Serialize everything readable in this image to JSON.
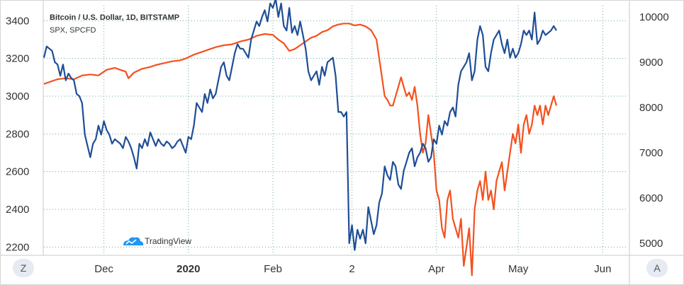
{
  "chart_data": {
    "type": "line",
    "legend": [
      {
        "name": "Bitcoin / U.S. Dollar, 1D, BITSTAMP",
        "bold": true
      },
      {
        "name": "SPX, SPCFD",
        "bold": false
      }
    ],
    "left_axis": {
      "ticks": [
        2200,
        2400,
        2600,
        2800,
        3000,
        3200,
        3400
      ],
      "range": [
        2160,
        3480
      ]
    },
    "right_axis": {
      "ticks": [
        5000,
        6000,
        7000,
        8000,
        9000,
        10000
      ],
      "range": [
        4750,
        10250
      ]
    },
    "x_axis": {
      "ticks": [
        {
          "label": "Dec",
          "x": 22,
          "bold": false
        },
        {
          "label": "2020",
          "x": 53,
          "bold": true
        },
        {
          "label": "Feb",
          "x": 84,
          "bold": false
        },
        {
          "label": "2",
          "x": 113,
          "bold": false
        },
        {
          "label": "Apr",
          "x": 144,
          "bold": false
        },
        {
          "label": "May",
          "x": 174,
          "bold": false
        },
        {
          "label": "Jun",
          "x": 205,
          "bold": false
        }
      ],
      "range": [
        0,
        214
      ]
    },
    "grid": true,
    "colors": {
      "bitcoin": "#1f4e96",
      "spx": "#f4511e",
      "grid": "#6aa8a0",
      "axis": "#c9c9c9"
    },
    "series": [
      {
        "name": "Bitcoin / U.S. Dollar, 1D, BITSTAMP",
        "axis": "right",
        "color": "#1f4e96",
        "points": [
          [
            0,
            9100
          ],
          [
            1,
            9350
          ],
          [
            2,
            9300
          ],
          [
            3,
            9250
          ],
          [
            4,
            9000
          ],
          [
            5,
            8950
          ],
          [
            6,
            8700
          ],
          [
            7,
            8950
          ],
          [
            8,
            8600
          ],
          [
            9,
            8750
          ],
          [
            10,
            8650
          ],
          [
            11,
            8600
          ],
          [
            12,
            8300
          ],
          [
            13,
            8250
          ],
          [
            14,
            8100
          ],
          [
            15,
            7400
          ],
          [
            16,
            7150
          ],
          [
            17,
            6900
          ],
          [
            18,
            7200
          ],
          [
            19,
            7300
          ],
          [
            20,
            7600
          ],
          [
            21,
            7400
          ],
          [
            22,
            7700
          ],
          [
            23,
            7500
          ],
          [
            24,
            7400
          ],
          [
            25,
            7200
          ],
          [
            26,
            7300
          ],
          [
            27,
            7250
          ],
          [
            28,
            7200
          ],
          [
            29,
            7100
          ],
          [
            30,
            7350
          ],
          [
            31,
            7250
          ],
          [
            32,
            7100
          ],
          [
            33,
            6900
          ],
          [
            34,
            6650
          ],
          [
            35,
            7200
          ],
          [
            36,
            7100
          ],
          [
            37,
            7300
          ],
          [
            38,
            7150
          ],
          [
            39,
            7450
          ],
          [
            40,
            7300
          ],
          [
            41,
            7150
          ],
          [
            42,
            7300
          ],
          [
            43,
            7200
          ],
          [
            44,
            7150
          ],
          [
            45,
            7250
          ],
          [
            46,
            7200
          ],
          [
            47,
            7100
          ],
          [
            48,
            7150
          ],
          [
            49,
            7250
          ],
          [
            50,
            7300
          ],
          [
            51,
            7150
          ],
          [
            52,
            7000
          ],
          [
            53,
            7350
          ],
          [
            54,
            7300
          ],
          [
            55,
            7600
          ],
          [
            56,
            8100
          ],
          [
            57,
            8000
          ],
          [
            58,
            7900
          ],
          [
            59,
            8300
          ],
          [
            60,
            8100
          ],
          [
            61,
            8400
          ],
          [
            62,
            8200
          ],
          [
            63,
            8300
          ],
          [
            64,
            8600
          ],
          [
            65,
            8900
          ],
          [
            66,
            9000
          ],
          [
            67,
            8700
          ],
          [
            68,
            8600
          ],
          [
            69,
            8900
          ],
          [
            70,
            9200
          ],
          [
            71,
            9400
          ],
          [
            72,
            9300
          ],
          [
            73,
            9300
          ],
          [
            74,
            9200
          ],
          [
            75,
            9100
          ],
          [
            76,
            9500
          ],
          [
            77,
            9700
          ],
          [
            78,
            9900
          ],
          [
            79,
            9800
          ],
          [
            80,
            10000
          ],
          [
            81,
            10150
          ],
          [
            82,
            9900
          ],
          [
            83,
            10300
          ],
          [
            84,
            10200
          ],
          [
            85,
            10400
          ],
          [
            86,
            10000
          ],
          [
            87,
            10300
          ],
          [
            88,
            9800
          ],
          [
            89,
            9700
          ],
          [
            90,
            10200
          ],
          [
            91,
            9650
          ],
          [
            92,
            9800
          ],
          [
            93,
            9600
          ],
          [
            94,
            9900
          ],
          [
            95,
            9600
          ],
          [
            96,
            9300
          ],
          [
            97,
            8800
          ],
          [
            98,
            8600
          ],
          [
            99,
            8700
          ],
          [
            100,
            8800
          ],
          [
            101,
            8500
          ],
          [
            102,
            8900
          ],
          [
            103,
            8700
          ],
          [
            104,
            9000
          ],
          [
            105,
            9050
          ],
          [
            106,
            9100
          ],
          [
            107,
            8700
          ],
          [
            108,
            7900
          ],
          [
            109,
            7900
          ],
          [
            110,
            7800
          ],
          [
            111,
            7900
          ],
          [
            112,
            5000
          ],
          [
            113,
            5400
          ],
          [
            114,
            4850
          ],
          [
            115,
            5300
          ],
          [
            116,
            5100
          ],
          [
            117,
            5300
          ],
          [
            118,
            5000
          ],
          [
            119,
            5800
          ],
          [
            120,
            5500
          ],
          [
            121,
            5200
          ],
          [
            122,
            5400
          ],
          [
            123,
            5900
          ],
          [
            124,
            6100
          ],
          [
            125,
            6700
          ],
          [
            126,
            6500
          ],
          [
            127,
            6400
          ],
          [
            128,
            6800
          ],
          [
            129,
            6700
          ],
          [
            130,
            6300
          ],
          [
            131,
            6200
          ],
          [
            132,
            6600
          ],
          [
            133,
            6800
          ],
          [
            134,
            7000
          ],
          [
            135,
            7100
          ],
          [
            136,
            6700
          ],
          [
            137,
            6900
          ],
          [
            138,
            7000
          ],
          [
            139,
            7200
          ],
          [
            140,
            7100
          ],
          [
            141,
            6800
          ],
          [
            142,
            6900
          ],
          [
            143,
            7300
          ],
          [
            144,
            7200
          ],
          [
            145,
            7600
          ],
          [
            146,
            7400
          ],
          [
            147,
            7700
          ],
          [
            148,
            7600
          ],
          [
            149,
            7900
          ],
          [
            150,
            8000
          ],
          [
            151,
            7800
          ],
          [
            152,
            8500
          ],
          [
            153,
            8800
          ],
          [
            154,
            8900
          ],
          [
            155,
            9000
          ],
          [
            156,
            9200
          ],
          [
            157,
            8600
          ],
          [
            158,
            8800
          ],
          [
            159,
            9500
          ],
          [
            160,
            9800
          ],
          [
            161,
            9600
          ],
          [
            162,
            8900
          ],
          [
            163,
            8800
          ],
          [
            164,
            9200
          ],
          [
            165,
            9500
          ],
          [
            166,
            9600
          ],
          [
            167,
            9700
          ],
          [
            168,
            9400
          ],
          [
            169,
            9200
          ],
          [
            170,
            9500
          ],
          [
            171,
            9100
          ],
          [
            172,
            9300
          ],
          [
            173,
            9100
          ],
          [
            174,
            9200
          ],
          [
            175,
            9400
          ],
          [
            176,
            9700
          ],
          [
            177,
            9600
          ],
          [
            178,
            9700
          ],
          [
            179,
            9500
          ],
          [
            180,
            10100
          ],
          [
            181,
            9400
          ],
          [
            182,
            9500
          ],
          [
            183,
            9700
          ],
          [
            184,
            9600
          ],
          [
            185,
            9650
          ],
          [
            186,
            9700
          ],
          [
            187,
            9800
          ],
          [
            188,
            9700
          ]
        ]
      },
      {
        "name": "SPX, SPCFD",
        "axis": "left",
        "color": "#f4511e",
        "points": [
          [
            0,
            3065
          ],
          [
            2,
            3075
          ],
          [
            5,
            3090
          ],
          [
            8,
            3095
          ],
          [
            11,
            3090
          ],
          [
            14,
            3110
          ],
          [
            17,
            3115
          ],
          [
            20,
            3110
          ],
          [
            23,
            3140
          ],
          [
            26,
            3150
          ],
          [
            28,
            3140
          ],
          [
            30,
            3130
          ],
          [
            31,
            3095
          ],
          [
            33,
            3125
          ],
          [
            36,
            3145
          ],
          [
            39,
            3155
          ],
          [
            41,
            3165
          ],
          [
            44,
            3175
          ],
          [
            47,
            3185
          ],
          [
            50,
            3190
          ],
          [
            52,
            3200
          ],
          [
            55,
            3220
          ],
          [
            58,
            3235
          ],
          [
            61,
            3250
          ],
          [
            63,
            3260
          ],
          [
            66,
            3270
          ],
          [
            69,
            3275
          ],
          [
            72,
            3290
          ],
          [
            75,
            3300
          ],
          [
            78,
            3320
          ],
          [
            81,
            3330
          ],
          [
            84,
            3325
          ],
          [
            86,
            3300
          ],
          [
            88,
            3280
          ],
          [
            90,
            3240
          ],
          [
            92,
            3250
          ],
          [
            94,
            3270
          ],
          [
            96,
            3290
          ],
          [
            98,
            3310
          ],
          [
            100,
            3320
          ],
          [
            102,
            3340
          ],
          [
            104,
            3350
          ],
          [
            106,
            3370
          ],
          [
            108,
            3380
          ],
          [
            110,
            3385
          ],
          [
            112,
            3385
          ],
          [
            114,
            3375
          ],
          [
            116,
            3380
          ],
          [
            118,
            3370
          ],
          [
            120,
            3350
          ],
          [
            122,
            3300
          ],
          [
            123,
            3200
          ],
          [
            124,
            3100
          ],
          [
            125,
            3000
          ],
          [
            126,
            2980
          ],
          [
            127,
            2950
          ],
          [
            128,
            2950
          ],
          [
            129,
            3000
          ],
          [
            130,
            3050
          ],
          [
            131,
            3100
          ],
          [
            132,
            3050
          ],
          [
            133,
            3000
          ],
          [
            134,
            3020
          ],
          [
            135,
            2980
          ],
          [
            136,
            3050
          ],
          [
            137,
            2950
          ],
          [
            138,
            2800
          ],
          [
            139,
            2700
          ],
          [
            140,
            2750
          ],
          [
            141,
            2900
          ],
          [
            142,
            2800
          ],
          [
            143,
            2700
          ],
          [
            144,
            2500
          ],
          [
            145,
            2450
          ],
          [
            146,
            2300
          ],
          [
            147,
            2250
          ],
          [
            148,
            2450
          ],
          [
            149,
            2500
          ],
          [
            150,
            2350
          ],
          [
            151,
            2300
          ],
          [
            152,
            2250
          ],
          [
            153,
            2350
          ],
          [
            154,
            2100
          ],
          [
            155,
            2200
          ],
          [
            156,
            2300
          ],
          [
            157,
            2050
          ],
          [
            158,
            2400
          ],
          [
            159,
            2500
          ],
          [
            160,
            2550
          ],
          [
            161,
            2450
          ],
          [
            162,
            2600
          ],
          [
            163,
            2450
          ],
          [
            164,
            2500
          ],
          [
            165,
            2400
          ],
          [
            166,
            2550
          ],
          [
            167,
            2600
          ],
          [
            168,
            2650
          ],
          [
            169,
            2500
          ],
          [
            170,
            2600
          ],
          [
            171,
            2700
          ],
          [
            172,
            2800
          ],
          [
            173,
            2750
          ],
          [
            174,
            2850
          ],
          [
            175,
            2700
          ],
          [
            176,
            2850
          ],
          [
            177,
            2900
          ],
          [
            178,
            2800
          ],
          [
            179,
            2850
          ],
          [
            180,
            2950
          ],
          [
            181,
            2900
          ],
          [
            182,
            2950
          ],
          [
            183,
            2850
          ],
          [
            184,
            2950
          ],
          [
            185,
            2900
          ],
          [
            186,
            2950
          ],
          [
            187,
            3000
          ],
          [
            188,
            2950
          ]
        ]
      }
    ]
  },
  "toolbar": {
    "left_button": "Z",
    "right_button": "A"
  },
  "watermark": {
    "text": "TradingView",
    "icon": "cloud-icon"
  }
}
